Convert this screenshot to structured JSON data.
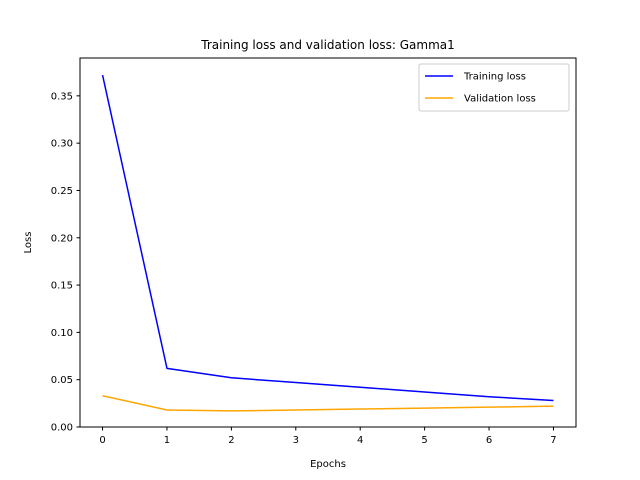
{
  "chart_data": {
    "type": "line",
    "title": "Training loss and validation loss: Gamma1",
    "xlabel": "Epochs",
    "ylabel": "Loss",
    "x": [
      0,
      1,
      2,
      3,
      4,
      5,
      6,
      7
    ],
    "xticks": [
      "0",
      "1",
      "2",
      "3",
      "4",
      "5",
      "6",
      "7"
    ],
    "yticks": [
      "0.00",
      "0.05",
      "0.10",
      "0.15",
      "0.20",
      "0.25",
      "0.30",
      "0.35"
    ],
    "xlim": [
      -0.35,
      7.35
    ],
    "ylim": [
      0,
      0.39
    ],
    "grid": false,
    "legend_position": "top-right",
    "series": [
      {
        "name": "Training loss",
        "color": "#0000ff",
        "values": [
          0.372,
          0.062,
          0.052,
          0.047,
          0.042,
          0.037,
          0.032,
          0.028
        ]
      },
      {
        "name": "Validation loss",
        "color": "#ffa500",
        "values": [
          0.033,
          0.018,
          0.017,
          0.018,
          0.019,
          0.02,
          0.021,
          0.022
        ]
      }
    ]
  }
}
